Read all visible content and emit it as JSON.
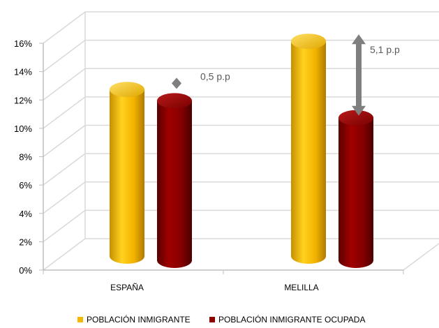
{
  "chart_data": {
    "type": "bar",
    "categories": [
      "ESPAÑA",
      "MELILLA"
    ],
    "series": [
      {
        "name": "POBLACIÓN INMIGRANTE",
        "values": [
          12.0,
          15.4
        ],
        "color": "#F5B800"
      },
      {
        "name": "POBLACIÓN INMIGRANTE  OCUPADA",
        "values": [
          11.5,
          10.3
        ],
        "color": "#8B0000"
      }
    ],
    "ylim": [
      0,
      16
    ],
    "y_ticks": [
      "0%",
      "2%",
      "4%",
      "6%",
      "8%",
      "10%",
      "12%",
      "14%",
      "16%"
    ],
    "grid": true,
    "legend_position": "bottom",
    "annotations": [
      {
        "category_index": 0,
        "text": "0,5 p.p"
      },
      {
        "category_index": 1,
        "text": "5,1 p.p"
      }
    ]
  }
}
